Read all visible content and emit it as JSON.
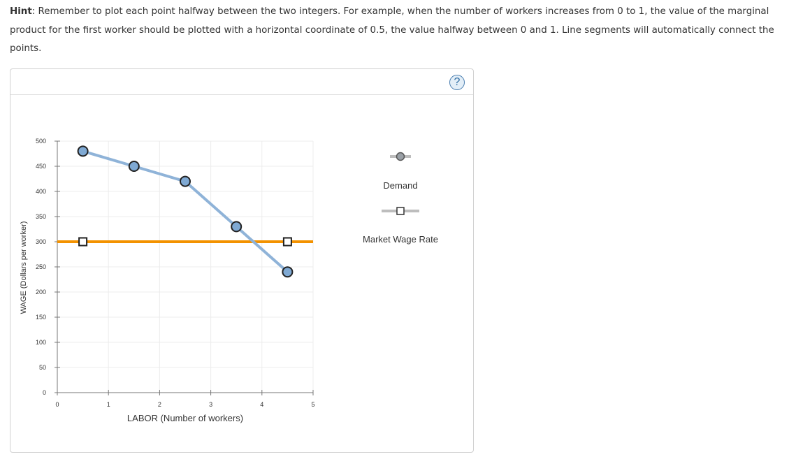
{
  "hint": {
    "label": "Hint",
    "text": ": Remember to plot each point halfway between the two integers. For example, when the number of workers increases from 0 to 1, the value of the marginal product for the first worker should be plotted with a horizontal coordinate of 0.5, the value halfway between 0 and 1. Line segments will automatically connect the points."
  },
  "help_label": "?",
  "chart_data": {
    "type": "line",
    "xlabel": "LABOR (Number of workers)",
    "ylabel": "WAGE (Dollars per worker)",
    "xlim": [
      0,
      5
    ],
    "ylim": [
      0,
      500
    ],
    "x_ticks": [
      0,
      1,
      2,
      3,
      4,
      5
    ],
    "y_ticks": [
      0,
      50,
      100,
      150,
      200,
      250,
      300,
      350,
      400,
      450,
      500
    ],
    "grid": true,
    "legend_position": "right",
    "series": [
      {
        "name": "Demand",
        "color": "#8fb3d8",
        "marker": "circle",
        "x": [
          0.5,
          1.5,
          2.5,
          3.5,
          4.5
        ],
        "y": [
          480,
          450,
          420,
          330,
          240
        ]
      },
      {
        "name": "Market Wage Rate",
        "color": "#f39200",
        "marker": "square",
        "x": [
          0,
          5
        ],
        "y": [
          300,
          300
        ],
        "marker_x": [
          0.5,
          4.5
        ]
      }
    ]
  }
}
